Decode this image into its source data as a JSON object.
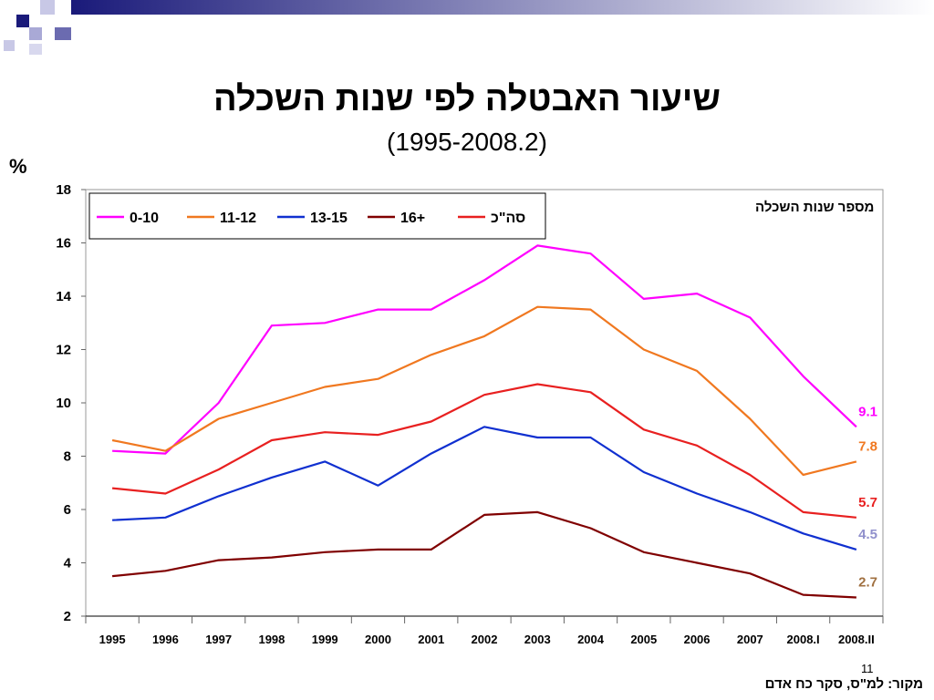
{
  "title": "שיעור האבטלה לפי שנות השכלה",
  "subtitle": "(1995-2008.2)",
  "percent_label": "%",
  "source": "מקור: למ\"ס, סקר כח אדם",
  "page_number": "11",
  "colors": {
    "decor_dark": "#1a1a7a",
    "decor_light": "#a9a9d6"
  },
  "chart_data": {
    "type": "line",
    "title": "",
    "xlabel": "",
    "ylabel": "%",
    "legend_title": "מספר שנות השכלה",
    "legend_position": "top-left",
    "ylim": [
      2,
      18
    ],
    "yticks": [
      "2",
      "4",
      "6",
      "8",
      "10",
      "12",
      "14",
      "16",
      "18"
    ],
    "grid": false,
    "categories": [
      "1995",
      "1996",
      "1997",
      "1998",
      "1999",
      "2000",
      "2001",
      "2002",
      "2003",
      "2004",
      "2005",
      "2006",
      "2007",
      "2008.I",
      "2008.II"
    ],
    "series": [
      {
        "name": "0-10",
        "color": "#ff00ff",
        "end_label": "9.1",
        "label_color": "#ff00ff",
        "values": [
          8.2,
          8.1,
          10.0,
          12.9,
          13.0,
          13.5,
          13.5,
          14.6,
          15.9,
          15.6,
          13.9,
          14.1,
          13.2,
          11.0,
          9.1
        ]
      },
      {
        "name": "11-12",
        "color": "#f07820",
        "end_label": "7.8",
        "label_color": "#f07820",
        "values": [
          8.6,
          8.2,
          9.4,
          10.0,
          10.6,
          10.9,
          11.8,
          12.5,
          13.6,
          13.5,
          12.0,
          11.2,
          9.4,
          7.3,
          7.8
        ]
      },
      {
        "name": "13-15",
        "color": "#1030d0",
        "end_label": "4.5",
        "label_color": "#9090cc",
        "values": [
          5.6,
          5.7,
          6.5,
          7.2,
          7.8,
          6.9,
          8.1,
          9.1,
          8.7,
          8.7,
          7.4,
          6.6,
          5.9,
          5.1,
          4.5
        ]
      },
      {
        "name": "16+",
        "color": "#800000",
        "end_label": "2.7",
        "label_color": "#a07040",
        "values": [
          3.5,
          3.7,
          4.1,
          4.2,
          4.4,
          4.5,
          4.5,
          5.8,
          5.9,
          5.3,
          4.4,
          4.0,
          3.6,
          2.8,
          2.7
        ]
      },
      {
        "name": "סה\"כ",
        "color": "#e82020",
        "end_label": "5.7",
        "label_color": "#e82020",
        "values": [
          6.8,
          6.6,
          7.5,
          8.6,
          8.9,
          8.8,
          9.3,
          10.3,
          10.7,
          10.4,
          9.0,
          8.4,
          7.3,
          5.9,
          5.7
        ]
      }
    ]
  }
}
